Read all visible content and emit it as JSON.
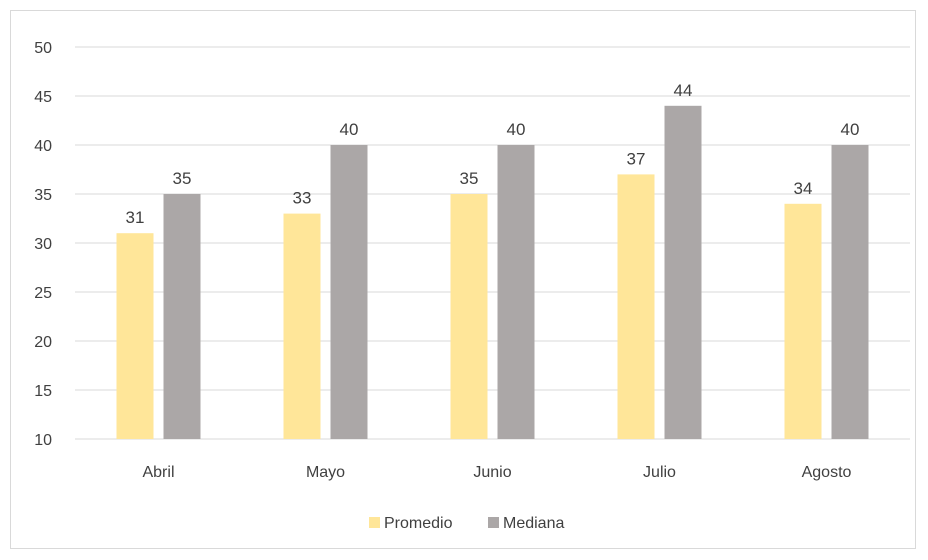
{
  "chart_data": {
    "type": "bar",
    "categories": [
      "Abril",
      "Mayo",
      "Junio",
      "Julio",
      "Agosto"
    ],
    "series": [
      {
        "name": "Promedio",
        "values": [
          31,
          33,
          35,
          37,
          34
        ],
        "color": "#FFE699"
      },
      {
        "name": "Mediana",
        "values": [
          35,
          40,
          40,
          44,
          40
        ],
        "color": "#ABA7A7"
      }
    ],
    "yticks": [
      "10",
      "15",
      "20",
      "25",
      "30",
      "35",
      "40",
      "45",
      "50"
    ],
    "ylim": [
      10,
      50
    ],
    "grid": true,
    "gridColor": "#d9d9d9",
    "legend_position": "bottom"
  }
}
